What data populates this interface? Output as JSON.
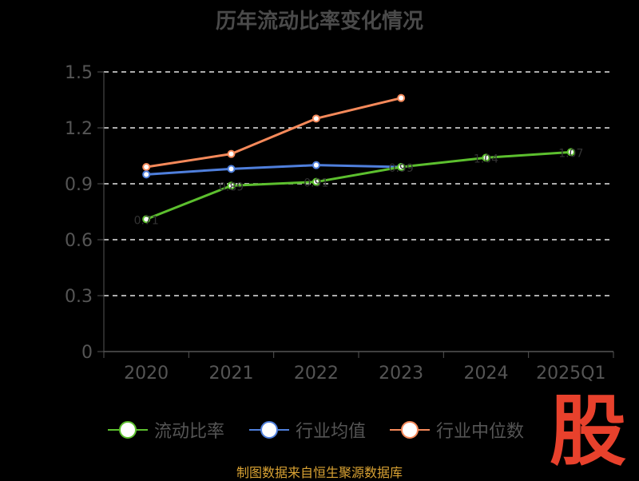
{
  "chart_data": {
    "type": "line",
    "title": "历年流动比率变化情况",
    "categories": [
      "2020",
      "2021",
      "2022",
      "2023",
      "2024",
      "2025Q1"
    ],
    "ylim": [
      0,
      1.5
    ],
    "yticks": [
      "0",
      "0.3",
      "0.6",
      "0.9",
      "1.2",
      "1.5"
    ],
    "ytick_values": [
      0,
      0.3,
      0.6,
      0.9,
      1.2,
      1.5
    ],
    "grid": true,
    "legend_position": "bottom",
    "series": [
      {
        "name": "流动比率",
        "color": "#5cbf2e",
        "values": [
          0.71,
          0.89,
          0.91,
          0.99,
          1.04,
          1.07
        ],
        "labels": [
          "0.71",
          "0.89",
          "0.91",
          "0.99",
          "1.04",
          "1.07"
        ]
      },
      {
        "name": "行业均值",
        "color": "#4f7fdc",
        "values": [
          0.95,
          0.98,
          1.0,
          0.99,
          null,
          null
        ]
      },
      {
        "name": "行业中位数",
        "color": "#f5895a",
        "values": [
          0.99,
          1.06,
          1.25,
          1.36,
          null,
          null
        ]
      }
    ]
  },
  "source_text": "制图数据来自恒生聚源数据库",
  "logo_text": "股"
}
